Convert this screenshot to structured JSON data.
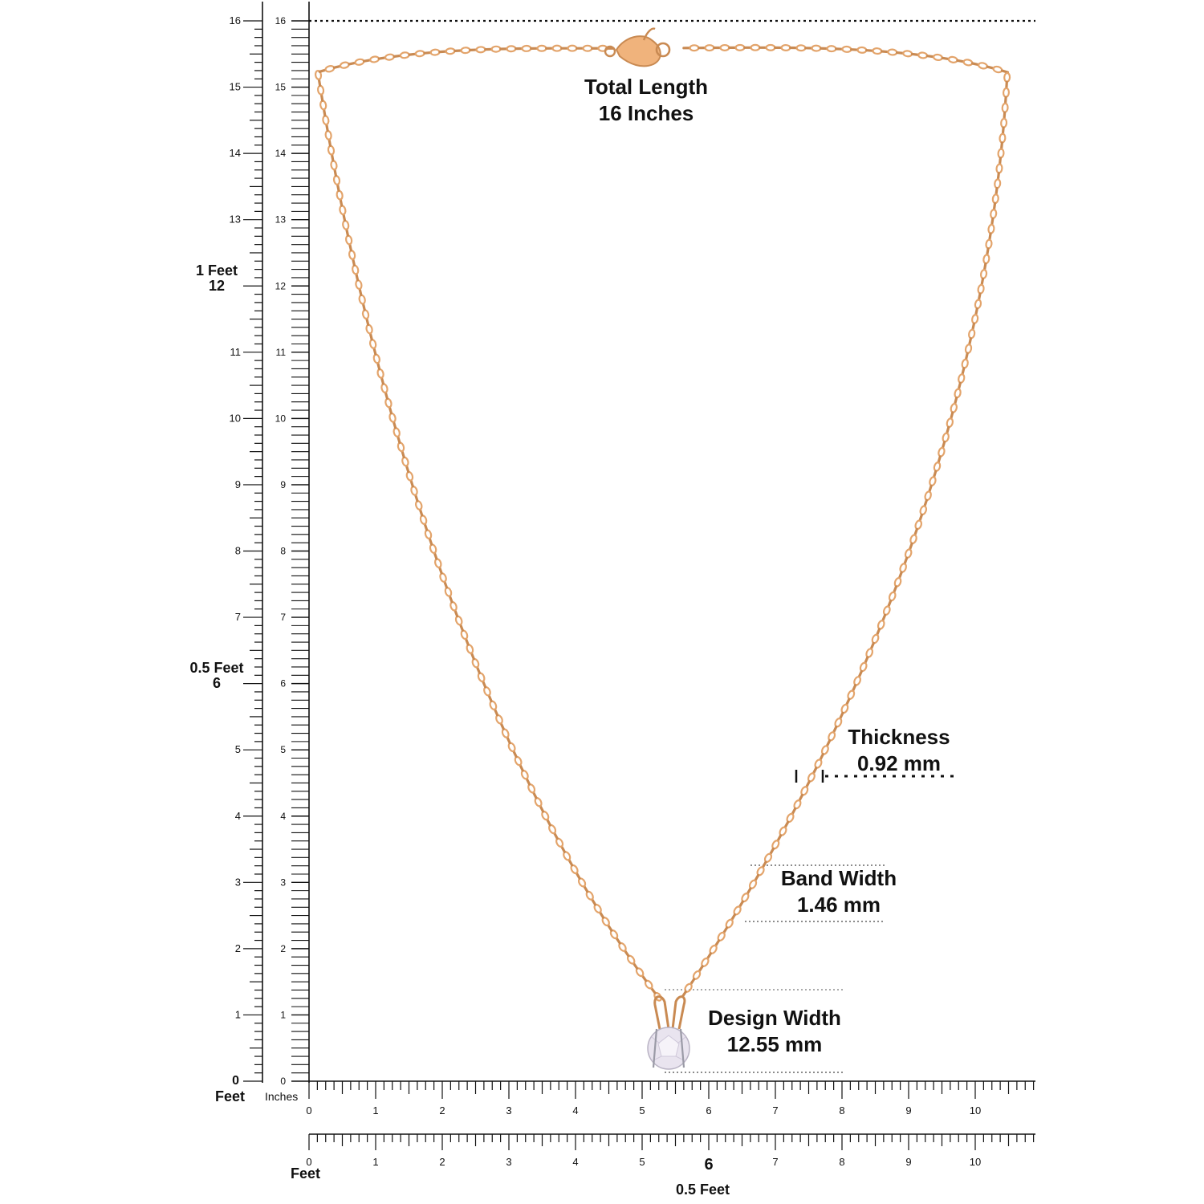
{
  "colors": {
    "chain": "#e3a46b",
    "chain_dark": "#c98a52",
    "ink": "#111111",
    "gem": "#e9e4ef",
    "background": "#ffffff"
  },
  "labels": {
    "total_length": {
      "line1": "Total Length",
      "line2": "16 Inches"
    },
    "thickness": {
      "line1": "Thickness",
      "line2": "0.92 mm"
    },
    "band_width": {
      "line1": "Band Width",
      "line2": "1.46 mm"
    },
    "design_width": {
      "line1": "Design Width",
      "line2": "12.55 mm"
    }
  },
  "vertical_ruler": {
    "feet_unit": "Feet",
    "inches_unit": "Inches",
    "one_foot": "1 Feet",
    "half_foot": "0.5 Feet",
    "ticks": [
      "0",
      "1",
      "2",
      "3",
      "4",
      "5",
      "6",
      "7",
      "8",
      "9",
      "10",
      "11",
      "12",
      "13",
      "14",
      "15",
      "16"
    ]
  },
  "horizontal_ruler_inches": {
    "ticks": [
      "0",
      "1",
      "2",
      "3",
      "4",
      "5",
      "6",
      "7",
      "8",
      "9",
      "10"
    ]
  },
  "horizontal_ruler_feet": {
    "feet_unit": "Feet",
    "half_foot": "0.5 Feet",
    "ticks": [
      "0",
      "1",
      "2",
      "3",
      "4",
      "5",
      "6",
      "7",
      "8",
      "9",
      "10"
    ]
  },
  "icons": {
    "clasp": "lobster-clasp-icon",
    "gem": "round-solitaire-gem-icon"
  }
}
